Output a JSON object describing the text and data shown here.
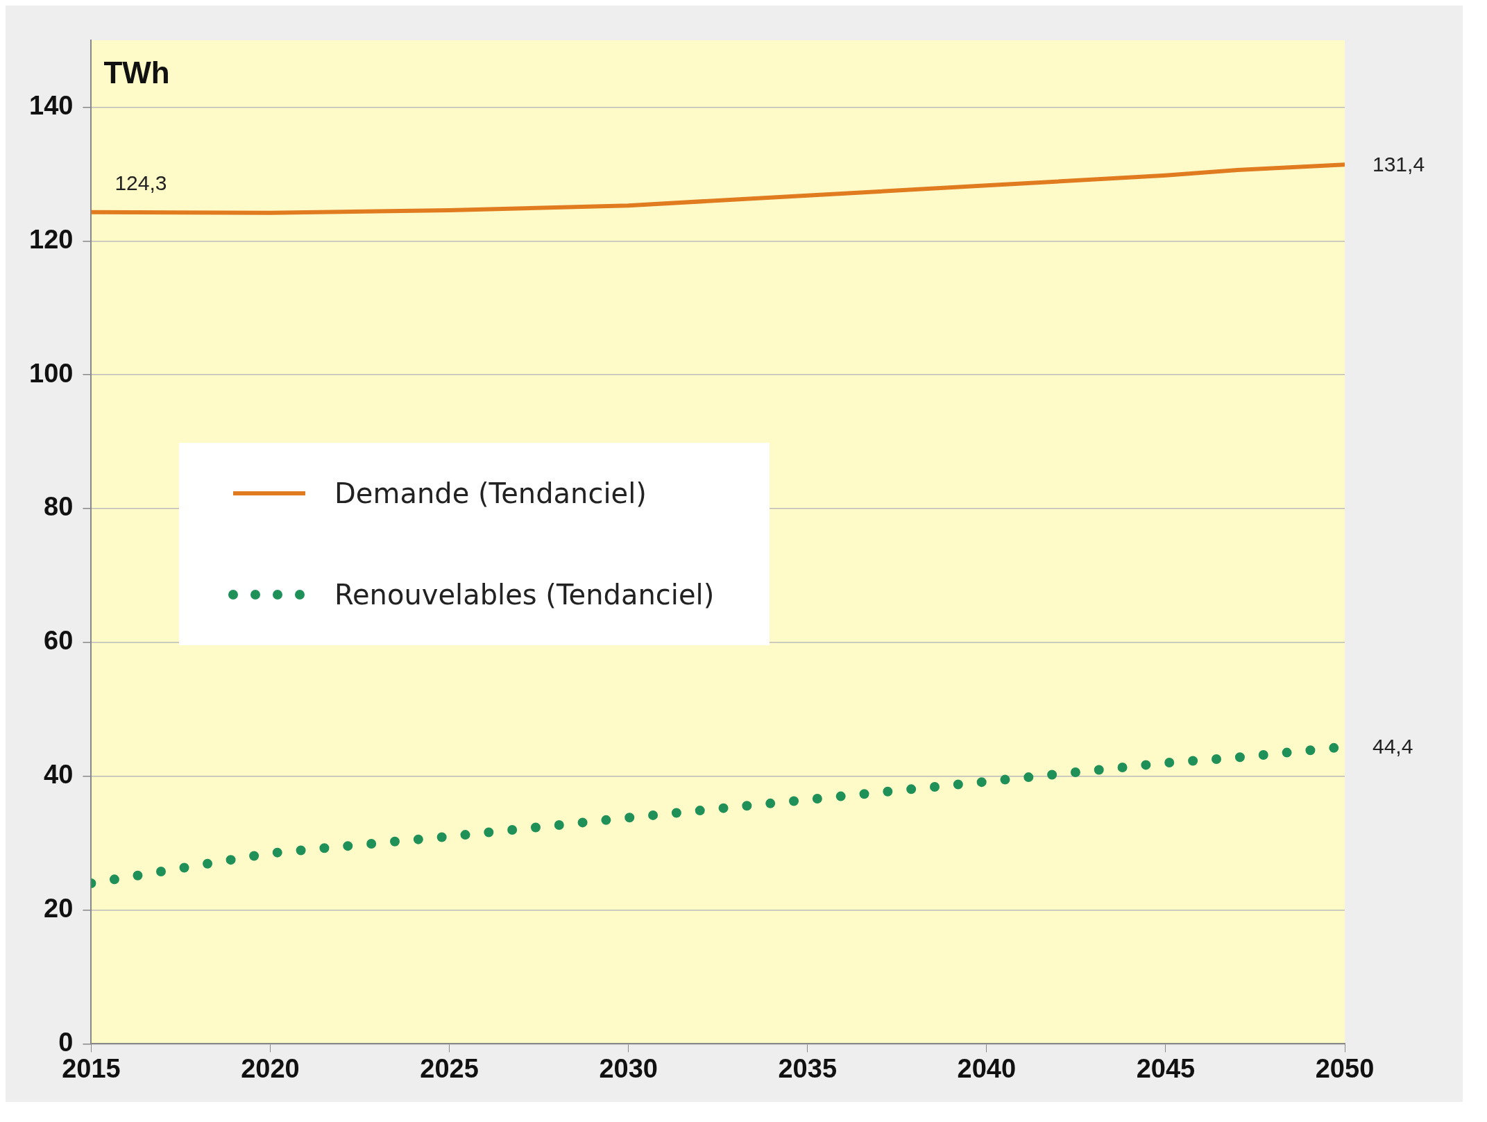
{
  "chart_data": {
    "type": "line",
    "ylabel": "TWh",
    "x": [
      2015,
      2020,
      2025,
      2030,
      2035,
      2040,
      2045,
      2047,
      2050
    ],
    "series": [
      {
        "name": "Demande (Tendanciel)",
        "color": "#e07b1f",
        "line_style": "solid",
        "values": [
          124.3,
          124.2,
          124.6,
          125.3,
          126.8,
          128.3,
          129.8,
          130.6,
          131.4
        ],
        "value_labels": [
          "124,3",
          null,
          null,
          null,
          null,
          null,
          null,
          null,
          "131,4"
        ]
      },
      {
        "name": "Renouvelables (Tendanciel)",
        "color": "#1e9058",
        "line_style": "dotted",
        "values": [
          24,
          28.5,
          31,
          33.8,
          36.5,
          39.2,
          42,
          42.8,
          44.4
        ],
        "value_labels": [
          null,
          null,
          null,
          null,
          null,
          null,
          null,
          null,
          "44,4"
        ]
      }
    ],
    "xlim": [
      2015,
      2050
    ],
    "xticks": [
      2015,
      2020,
      2025,
      2030,
      2035,
      2040,
      2045,
      2050
    ],
    "ylim": [
      0,
      150
    ],
    "yticks": [
      0,
      20,
      40,
      60,
      80,
      100,
      120,
      140
    ],
    "grid": "y",
    "legend": "left",
    "marker": "none"
  }
}
